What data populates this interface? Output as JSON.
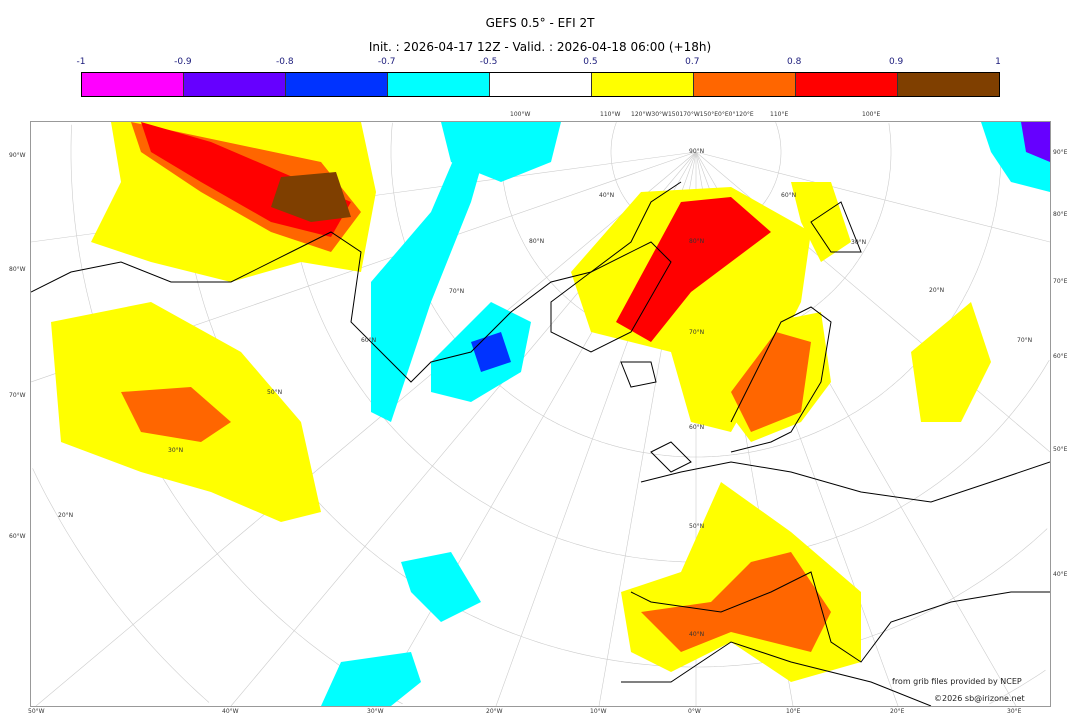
{
  "title": "GEFS 0.5° - EFI 2T",
  "subtitle": "Init. : 2026-04-17 12Z - Valid. : 2026-04-18 06:00 (+18h)",
  "colorbar": {
    "ticks": [
      "-1",
      "-0.9",
      "-0.8",
      "-0.7",
      "-0.5",
      "0.5",
      "0.7",
      "0.8",
      "0.9",
      "1"
    ],
    "colors": [
      "#ff00ff",
      "#6600ff",
      "#0033ff",
      "#00ffff",
      "#ffffff",
      "#ffff00",
      "#ff6600",
      "#ff0000",
      "#7f3f00"
    ]
  },
  "map": {
    "left_labels": [
      "90°W",
      "80°W",
      "70°W",
      "60°W"
    ],
    "right_labels": [
      "90°E",
      "80°E",
      "70°E",
      "60°E",
      "50°E",
      "40°E"
    ],
    "bottom_labels": [
      "50°W",
      "40°W",
      "30°W",
      "20°W",
      "10°W",
      "0°W",
      "10°E",
      "20°E",
      "30°E"
    ],
    "top_labels": [
      "100°W",
      "110°W",
      "120°W30°W150170°W150°E0°E0°120°E",
      "110°E",
      "100°E"
    ],
    "lat_labels": [
      "90°N",
      "80°N",
      "70°N",
      "60°N",
      "50°N",
      "40°N",
      "30°N",
      "20°N"
    ],
    "inner_lon_labels": [
      "80°N",
      "70°N",
      "60°N",
      "50°N",
      "40°N",
      "30°N",
      "20°N",
      "70°N",
      "60°N",
      "50°N",
      "40°N",
      "70°N",
      "60°N",
      "50°N",
      "40°N"
    ]
  },
  "credits": {
    "source": "from grib files provided by NCEP",
    "copyright": "©2026 sb@irizone.net"
  }
}
